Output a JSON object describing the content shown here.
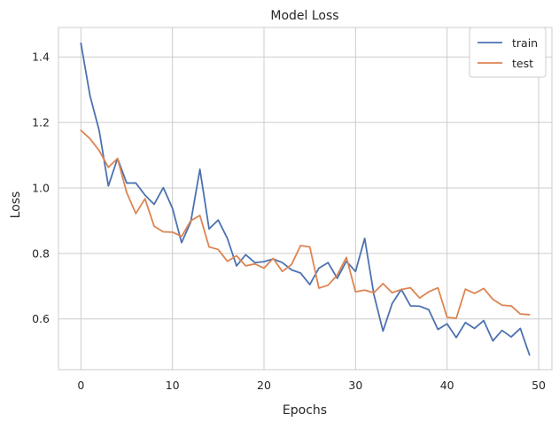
{
  "chart_data": {
    "type": "line",
    "title": "Model Loss",
    "xlabel": "Epochs",
    "ylabel": "Loss",
    "xlim": [
      -2.45,
      51.45
    ],
    "ylim": [
      0.445,
      1.49
    ],
    "xticks": [
      0,
      10,
      20,
      30,
      40,
      50
    ],
    "yticks": [
      0.6,
      0.8,
      1.0,
      1.2,
      1.4
    ],
    "ytick_labels": [
      "0.6",
      "0.8",
      "1.0",
      "1.2",
      "1.4"
    ],
    "grid": true,
    "legend_position": "top-right",
    "x": [
      0,
      1,
      2,
      3,
      4,
      5,
      6,
      7,
      8,
      9,
      10,
      11,
      12,
      13,
      14,
      15,
      16,
      17,
      18,
      19,
      20,
      21,
      22,
      23,
      24,
      25,
      26,
      27,
      28,
      29,
      30,
      31,
      32,
      33,
      34,
      35,
      36,
      37,
      38,
      39,
      40,
      41,
      42,
      43,
      44,
      45,
      46,
      47,
      48,
      49
    ],
    "series": [
      {
        "name": "train",
        "color": "#4c72b0",
        "values": [
          1.442,
          1.281,
          1.175,
          1.006,
          1.09,
          1.015,
          1.015,
          0.978,
          0.95,
          1.001,
          0.938,
          0.833,
          0.896,
          1.057,
          0.875,
          0.902,
          0.846,
          0.762,
          0.796,
          0.772,
          0.775,
          0.783,
          0.772,
          0.75,
          0.74,
          0.705,
          0.755,
          0.772,
          0.724,
          0.776,
          0.745,
          0.846,
          0.675,
          0.563,
          0.647,
          0.69,
          0.64,
          0.639,
          0.628,
          0.568,
          0.585,
          0.543,
          0.589,
          0.571,
          0.595,
          0.533,
          0.565,
          0.545,
          0.571,
          0.49
        ]
      },
      {
        "name": "test",
        "color": "#dd8452",
        "values": [
          1.176,
          1.15,
          1.114,
          1.063,
          1.09,
          0.986,
          0.922,
          0.967,
          0.883,
          0.866,
          0.865,
          0.852,
          0.9,
          0.916,
          0.82,
          0.812,
          0.776,
          0.793,
          0.762,
          0.768,
          0.755,
          0.785,
          0.745,
          0.766,
          0.824,
          0.82,
          0.694,
          0.703,
          0.734,
          0.788,
          0.683,
          0.688,
          0.68,
          0.708,
          0.68,
          0.69,
          0.695,
          0.664,
          0.683,
          0.695,
          0.605,
          0.602,
          0.691,
          0.678,
          0.693,
          0.66,
          0.642,
          0.64,
          0.615,
          0.613
        ]
      }
    ]
  }
}
